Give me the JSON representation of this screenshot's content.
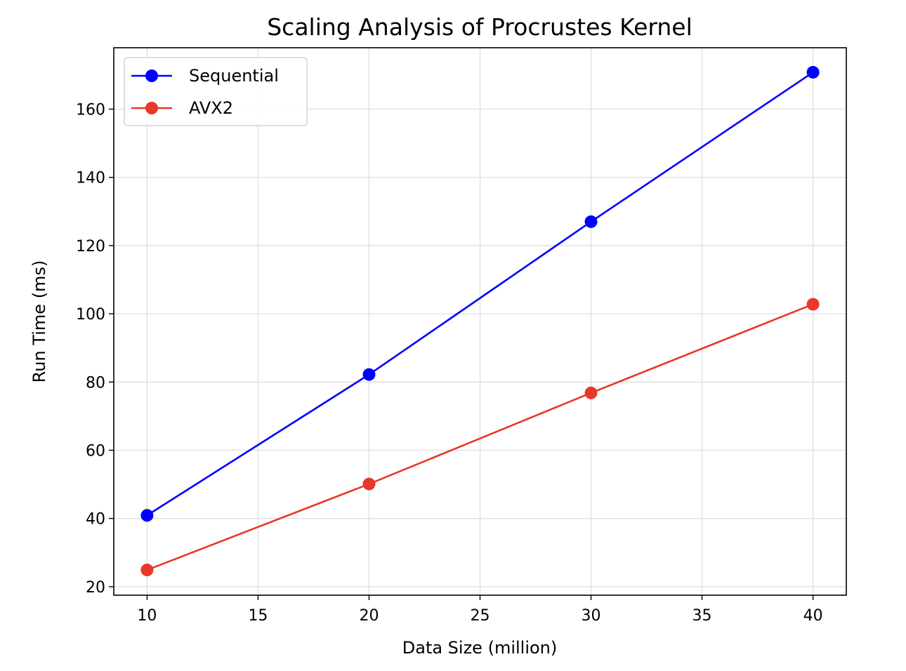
{
  "chart_data": {
    "type": "line",
    "title": "Scaling Analysis of Procrustes Kernel",
    "xlabel": "Data Size (million)",
    "ylabel": "Run Time (ms)",
    "x": [
      10,
      20,
      30,
      40
    ],
    "xlim": [
      8.5,
      41.5
    ],
    "ylim": [
      17.5,
      178
    ],
    "xticks": [
      10,
      15,
      20,
      25,
      30,
      35,
      40
    ],
    "yticks": [
      20,
      40,
      60,
      80,
      100,
      120,
      140,
      160
    ],
    "grid": true,
    "legend_position": "top-left",
    "series": [
      {
        "name": "Sequential",
        "color": "#0000ff",
        "marker": "circle",
        "values": [
          40.9,
          82.2,
          127.0,
          170.8
        ]
      },
      {
        "name": "AVX2",
        "color": "#e8382a",
        "marker": "circle",
        "values": [
          24.9,
          50.1,
          76.8,
          102.8
        ]
      }
    ]
  }
}
